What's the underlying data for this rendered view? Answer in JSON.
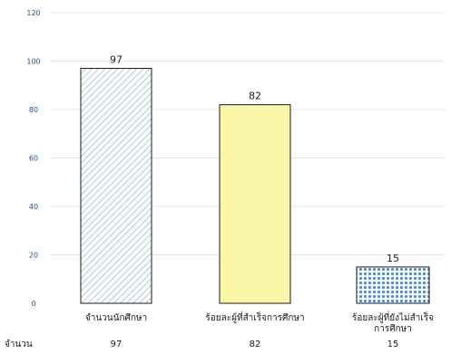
{
  "chart_data": {
    "type": "bar",
    "categories": [
      [
        "จำนวนนักศึกษา"
      ],
      [
        "ร้อยละผู้ที่สำเร็จการศึกษา"
      ],
      [
        "ร้อยละผู้ที่ยังไม่สำเร็จ",
        "การศึกษา"
      ]
    ],
    "values": [
      97,
      82,
      15
    ],
    "yticks": [
      0,
      20,
      40,
      60,
      80,
      100,
      120
    ],
    "ylim": [
      0,
      120
    ],
    "grid": true,
    "data_table": {
      "row_label": "จำนวน",
      "values": [
        "97",
        "82",
        "15"
      ]
    },
    "bar_styles": [
      {
        "pattern": "diagonal-hatch",
        "color": "#a9c9de"
      },
      {
        "pattern": "solid",
        "color": "#fbf7a8"
      },
      {
        "pattern": "dots",
        "color": "#4a90d9"
      }
    ]
  }
}
